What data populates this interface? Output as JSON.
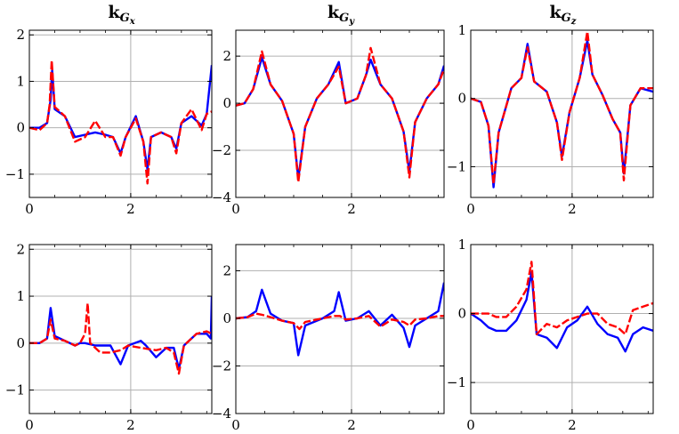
{
  "chart_data": [
    {
      "type": "line",
      "title": {
        "main": "k",
        "sub": "G",
        "subsub": "x"
      },
      "xlim": [
        0,
        3.6
      ],
      "ylim": [
        -1.5,
        2.1
      ],
      "xticks": [
        0,
        2
      ],
      "yticks": [
        -1,
        0,
        1,
        2
      ],
      "xtick_labels": [
        "0",
        "2"
      ],
      "ytick_labels": [
        "−1",
        "0",
        "1",
        "2"
      ],
      "grid": true,
      "series": [
        {
          "color": "#0000ff",
          "style": "solid",
          "x": [
            0,
            0.2,
            0.35,
            0.42,
            0.45,
            0.5,
            0.7,
            0.9,
            1.1,
            1.3,
            1.5,
            1.65,
            1.8,
            1.9,
            2.1,
            2.25,
            2.33,
            2.4,
            2.6,
            2.8,
            2.9,
            3.0,
            3.2,
            3.4,
            3.5,
            3.6
          ],
          "y": [
            0.0,
            0.0,
            0.1,
            0.6,
            1.25,
            0.4,
            0.25,
            -0.2,
            -0.15,
            -0.1,
            -0.15,
            -0.2,
            -0.55,
            -0.2,
            0.25,
            -0.3,
            -0.9,
            -0.2,
            -0.1,
            -0.2,
            -0.45,
            0.1,
            0.25,
            0.05,
            0.3,
            1.35
          ]
        },
        {
          "color": "#ff0000",
          "style": "dashed",
          "x": [
            0,
            0.2,
            0.35,
            0.4,
            0.44,
            0.5,
            0.7,
            0.9,
            1.1,
            1.3,
            1.5,
            1.65,
            1.8,
            1.9,
            2.1,
            2.25,
            2.33,
            2.4,
            2.6,
            2.8,
            2.9,
            3.0,
            3.2,
            3.4,
            3.5,
            3.6
          ],
          "y": [
            0.0,
            -0.05,
            0.1,
            0.5,
            1.45,
            0.45,
            0.25,
            -0.3,
            -0.2,
            0.15,
            -0.2,
            -0.2,
            -0.6,
            -0.2,
            0.2,
            -0.3,
            -1.2,
            -0.2,
            -0.1,
            -0.2,
            -0.55,
            0.1,
            0.4,
            -0.05,
            0.3,
            0.35
          ]
        }
      ]
    },
    {
      "type": "line",
      "title": {
        "main": "k",
        "sub": "G",
        "subsub": "y"
      },
      "xlim": [
        0,
        3.6
      ],
      "ylim": [
        -4,
        3.1
      ],
      "xticks": [
        0,
        2
      ],
      "yticks": [
        -4,
        -2,
        0,
        2
      ],
      "xtick_labels": [
        "0",
        "2"
      ],
      "ytick_labels": [
        "−4",
        "−2",
        "0",
        "2"
      ],
      "grid": true,
      "series": [
        {
          "color": "#0000ff",
          "style": "solid",
          "x": [
            0,
            0.15,
            0.3,
            0.45,
            0.6,
            0.8,
            1.0,
            1.08,
            1.2,
            1.4,
            1.6,
            1.78,
            1.9,
            2.1,
            2.25,
            2.33,
            2.5,
            2.7,
            2.9,
            3.0,
            3.1,
            3.3,
            3.5,
            3.6
          ],
          "y": [
            -0.1,
            0.0,
            0.6,
            1.95,
            0.8,
            0.1,
            -1.3,
            -3.2,
            -1.0,
            0.2,
            0.8,
            1.75,
            0.0,
            0.2,
            1.2,
            1.85,
            0.8,
            0.2,
            -1.2,
            -2.9,
            -0.8,
            0.2,
            0.8,
            1.6
          ]
        },
        {
          "color": "#ff0000",
          "style": "dashed",
          "x": [
            0,
            0.15,
            0.3,
            0.45,
            0.6,
            0.8,
            1.0,
            1.08,
            1.2,
            1.4,
            1.6,
            1.78,
            1.9,
            2.1,
            2.25,
            2.33,
            2.5,
            2.7,
            2.9,
            3.0,
            3.1,
            3.3,
            3.5,
            3.6
          ],
          "y": [
            -0.1,
            0.0,
            0.6,
            2.2,
            0.8,
            0.1,
            -1.3,
            -3.35,
            -1.0,
            0.2,
            0.8,
            1.55,
            0.0,
            0.2,
            1.2,
            2.35,
            0.8,
            0.2,
            -1.2,
            -3.15,
            -0.8,
            0.2,
            0.8,
            1.45
          ]
        }
      ]
    },
    {
      "type": "line",
      "title": {
        "main": "k",
        "sub": "G",
        "subsub": "z"
      },
      "xlim": [
        0,
        3.6
      ],
      "ylim": [
        -1.45,
        1.0
      ],
      "xticks": [
        0,
        2
      ],
      "yticks": [
        -1,
        0,
        1
      ],
      "xtick_labels": [
        "0",
        "2"
      ],
      "ytick_labels": [
        "−1",
        "0",
        "1"
      ],
      "grid": true,
      "series": [
        {
          "color": "#0000ff",
          "style": "solid",
          "x": [
            0,
            0.2,
            0.35,
            0.45,
            0.55,
            0.8,
            1.0,
            1.12,
            1.25,
            1.5,
            1.7,
            1.8,
            1.95,
            2.15,
            2.3,
            2.4,
            2.6,
            2.8,
            2.95,
            3.02,
            3.15,
            3.35,
            3.6
          ],
          "y": [
            0.0,
            -0.05,
            -0.4,
            -1.3,
            -0.5,
            0.15,
            0.3,
            0.8,
            0.25,
            0.1,
            -0.35,
            -0.85,
            -0.2,
            0.3,
            0.85,
            0.35,
            0.05,
            -0.3,
            -0.5,
            -1.1,
            -0.1,
            0.15,
            0.1
          ]
        },
        {
          "color": "#ff0000",
          "style": "dashed",
          "x": [
            0,
            0.2,
            0.35,
            0.45,
            0.55,
            0.8,
            1.0,
            1.12,
            1.25,
            1.5,
            1.7,
            1.8,
            1.95,
            2.15,
            2.3,
            2.4,
            2.6,
            2.8,
            2.95,
            3.02,
            3.15,
            3.35,
            3.6
          ],
          "y": [
            0.0,
            -0.05,
            -0.4,
            -1.25,
            -0.5,
            0.15,
            0.3,
            0.75,
            0.25,
            0.1,
            -0.35,
            -0.9,
            -0.2,
            0.3,
            0.98,
            0.35,
            0.05,
            -0.3,
            -0.5,
            -1.2,
            -0.1,
            0.15,
            0.15
          ]
        }
      ]
    },
    {
      "type": "line",
      "title": null,
      "xlim": [
        0,
        3.6
      ],
      "ylim": [
        -1.5,
        2.1
      ],
      "xticks": [
        0,
        2
      ],
      "yticks": [
        -1,
        0,
        1,
        2
      ],
      "xtick_labels": [
        "0",
        "2"
      ],
      "ytick_labels": [
        "−1",
        "0",
        "1",
        "2"
      ],
      "grid": true,
      "series": [
        {
          "color": "#0000ff",
          "style": "solid",
          "x": [
            0,
            0.2,
            0.35,
            0.42,
            0.5,
            0.7,
            0.9,
            1.0,
            1.1,
            1.3,
            1.6,
            1.8,
            1.95,
            2.2,
            2.3,
            2.5,
            2.7,
            2.85,
            2.95,
            3.05,
            3.3,
            3.5,
            3.58,
            3.6
          ],
          "y": [
            0.0,
            0.0,
            0.1,
            0.75,
            0.15,
            0.05,
            -0.05,
            0.0,
            0.0,
            -0.05,
            -0.05,
            -0.45,
            -0.05,
            0.05,
            -0.05,
            -0.3,
            -0.1,
            -0.1,
            -0.55,
            -0.05,
            0.2,
            0.2,
            0.1,
            1.0
          ]
        },
        {
          "color": "#ff0000",
          "style": "dashed",
          "x": [
            0,
            0.2,
            0.35,
            0.42,
            0.5,
            0.7,
            0.9,
            1.0,
            1.1,
            1.15,
            1.2,
            1.4,
            1.6,
            1.8,
            1.95,
            2.2,
            2.5,
            2.7,
            2.85,
            2.95,
            3.05,
            3.3,
            3.5,
            3.6
          ],
          "y": [
            0.0,
            0.0,
            0.1,
            0.5,
            0.1,
            0.05,
            -0.05,
            0.0,
            0.2,
            0.85,
            0.0,
            -0.2,
            -0.2,
            -0.15,
            -0.05,
            -0.1,
            -0.15,
            -0.1,
            -0.2,
            -0.65,
            -0.05,
            0.2,
            0.25,
            0.2
          ]
        }
      ]
    },
    {
      "type": "line",
      "title": null,
      "xlim": [
        0,
        3.6
      ],
      "ylim": [
        -4,
        3.1
      ],
      "xticks": [
        0,
        2
      ],
      "yticks": [
        -4,
        -2,
        0,
        2
      ],
      "xtick_labels": [
        "0",
        "2"
      ],
      "ytick_labels": [
        "−4",
        "−2",
        "0",
        "2"
      ],
      "grid": true,
      "series": [
        {
          "color": "#0000ff",
          "style": "solid",
          "x": [
            0,
            0.2,
            0.35,
            0.45,
            0.6,
            0.8,
            1.0,
            1.08,
            1.2,
            1.5,
            1.7,
            1.78,
            1.9,
            2.1,
            2.3,
            2.5,
            2.7,
            2.9,
            3.0,
            3.1,
            3.3,
            3.5,
            3.6
          ],
          "y": [
            0.0,
            0.05,
            0.3,
            1.2,
            0.2,
            -0.1,
            -0.2,
            -1.55,
            -0.3,
            0.0,
            0.3,
            1.1,
            -0.1,
            0.0,
            0.3,
            -0.3,
            0.15,
            -0.4,
            -1.2,
            -0.3,
            0.0,
            0.3,
            1.5
          ]
        },
        {
          "color": "#ff0000",
          "style": "dashed",
          "x": [
            0,
            0.2,
            0.35,
            0.45,
            0.6,
            0.8,
            1.0,
            1.1,
            1.2,
            1.5,
            1.7,
            1.8,
            1.9,
            2.1,
            2.3,
            2.5,
            2.7,
            2.9,
            3.0,
            3.1,
            3.3,
            3.5,
            3.6
          ],
          "y": [
            0.0,
            0.05,
            0.2,
            0.15,
            0.05,
            -0.1,
            -0.2,
            -0.45,
            -0.15,
            0.0,
            0.1,
            0.1,
            -0.05,
            0.0,
            0.1,
            -0.35,
            -0.05,
            -0.15,
            -0.3,
            -0.05,
            0.0,
            0.1,
            0.1
          ]
        }
      ]
    },
    {
      "type": "line",
      "title": null,
      "xlim": [
        0,
        3.6
      ],
      "ylim": [
        -1.45,
        1.0
      ],
      "xticks": [
        0,
        2
      ],
      "yticks": [
        -1,
        0,
        1
      ],
      "xtick_labels": [
        "0",
        "2"
      ],
      "ytick_labels": [
        "−1",
        "0",
        "1"
      ],
      "grid": true,
      "series": [
        {
          "color": "#0000ff",
          "style": "solid",
          "x": [
            0,
            0.2,
            0.35,
            0.5,
            0.7,
            0.9,
            1.1,
            1.2,
            1.3,
            1.5,
            1.7,
            1.9,
            2.1,
            2.3,
            2.5,
            2.7,
            2.9,
            3.05,
            3.2,
            3.4,
            3.6
          ],
          "y": [
            0.0,
            -0.1,
            -0.2,
            -0.25,
            -0.25,
            -0.1,
            0.2,
            0.6,
            -0.3,
            -0.35,
            -0.5,
            -0.2,
            -0.1,
            0.1,
            -0.15,
            -0.3,
            -0.35,
            -0.55,
            -0.3,
            -0.2,
            -0.25
          ]
        },
        {
          "color": "#ff0000",
          "style": "dashed",
          "x": [
            0,
            0.2,
            0.35,
            0.5,
            0.7,
            0.9,
            1.1,
            1.2,
            1.3,
            1.5,
            1.7,
            1.9,
            2.1,
            2.3,
            2.5,
            2.7,
            2.9,
            3.05,
            3.2,
            3.4,
            3.6
          ],
          "y": [
            0.0,
            0.0,
            0.0,
            -0.05,
            -0.05,
            0.1,
            0.35,
            0.75,
            -0.3,
            -0.15,
            -0.2,
            -0.1,
            -0.05,
            0.0,
            0.0,
            -0.15,
            -0.2,
            -0.3,
            0.05,
            0.1,
            0.15
          ]
        }
      ]
    }
  ]
}
